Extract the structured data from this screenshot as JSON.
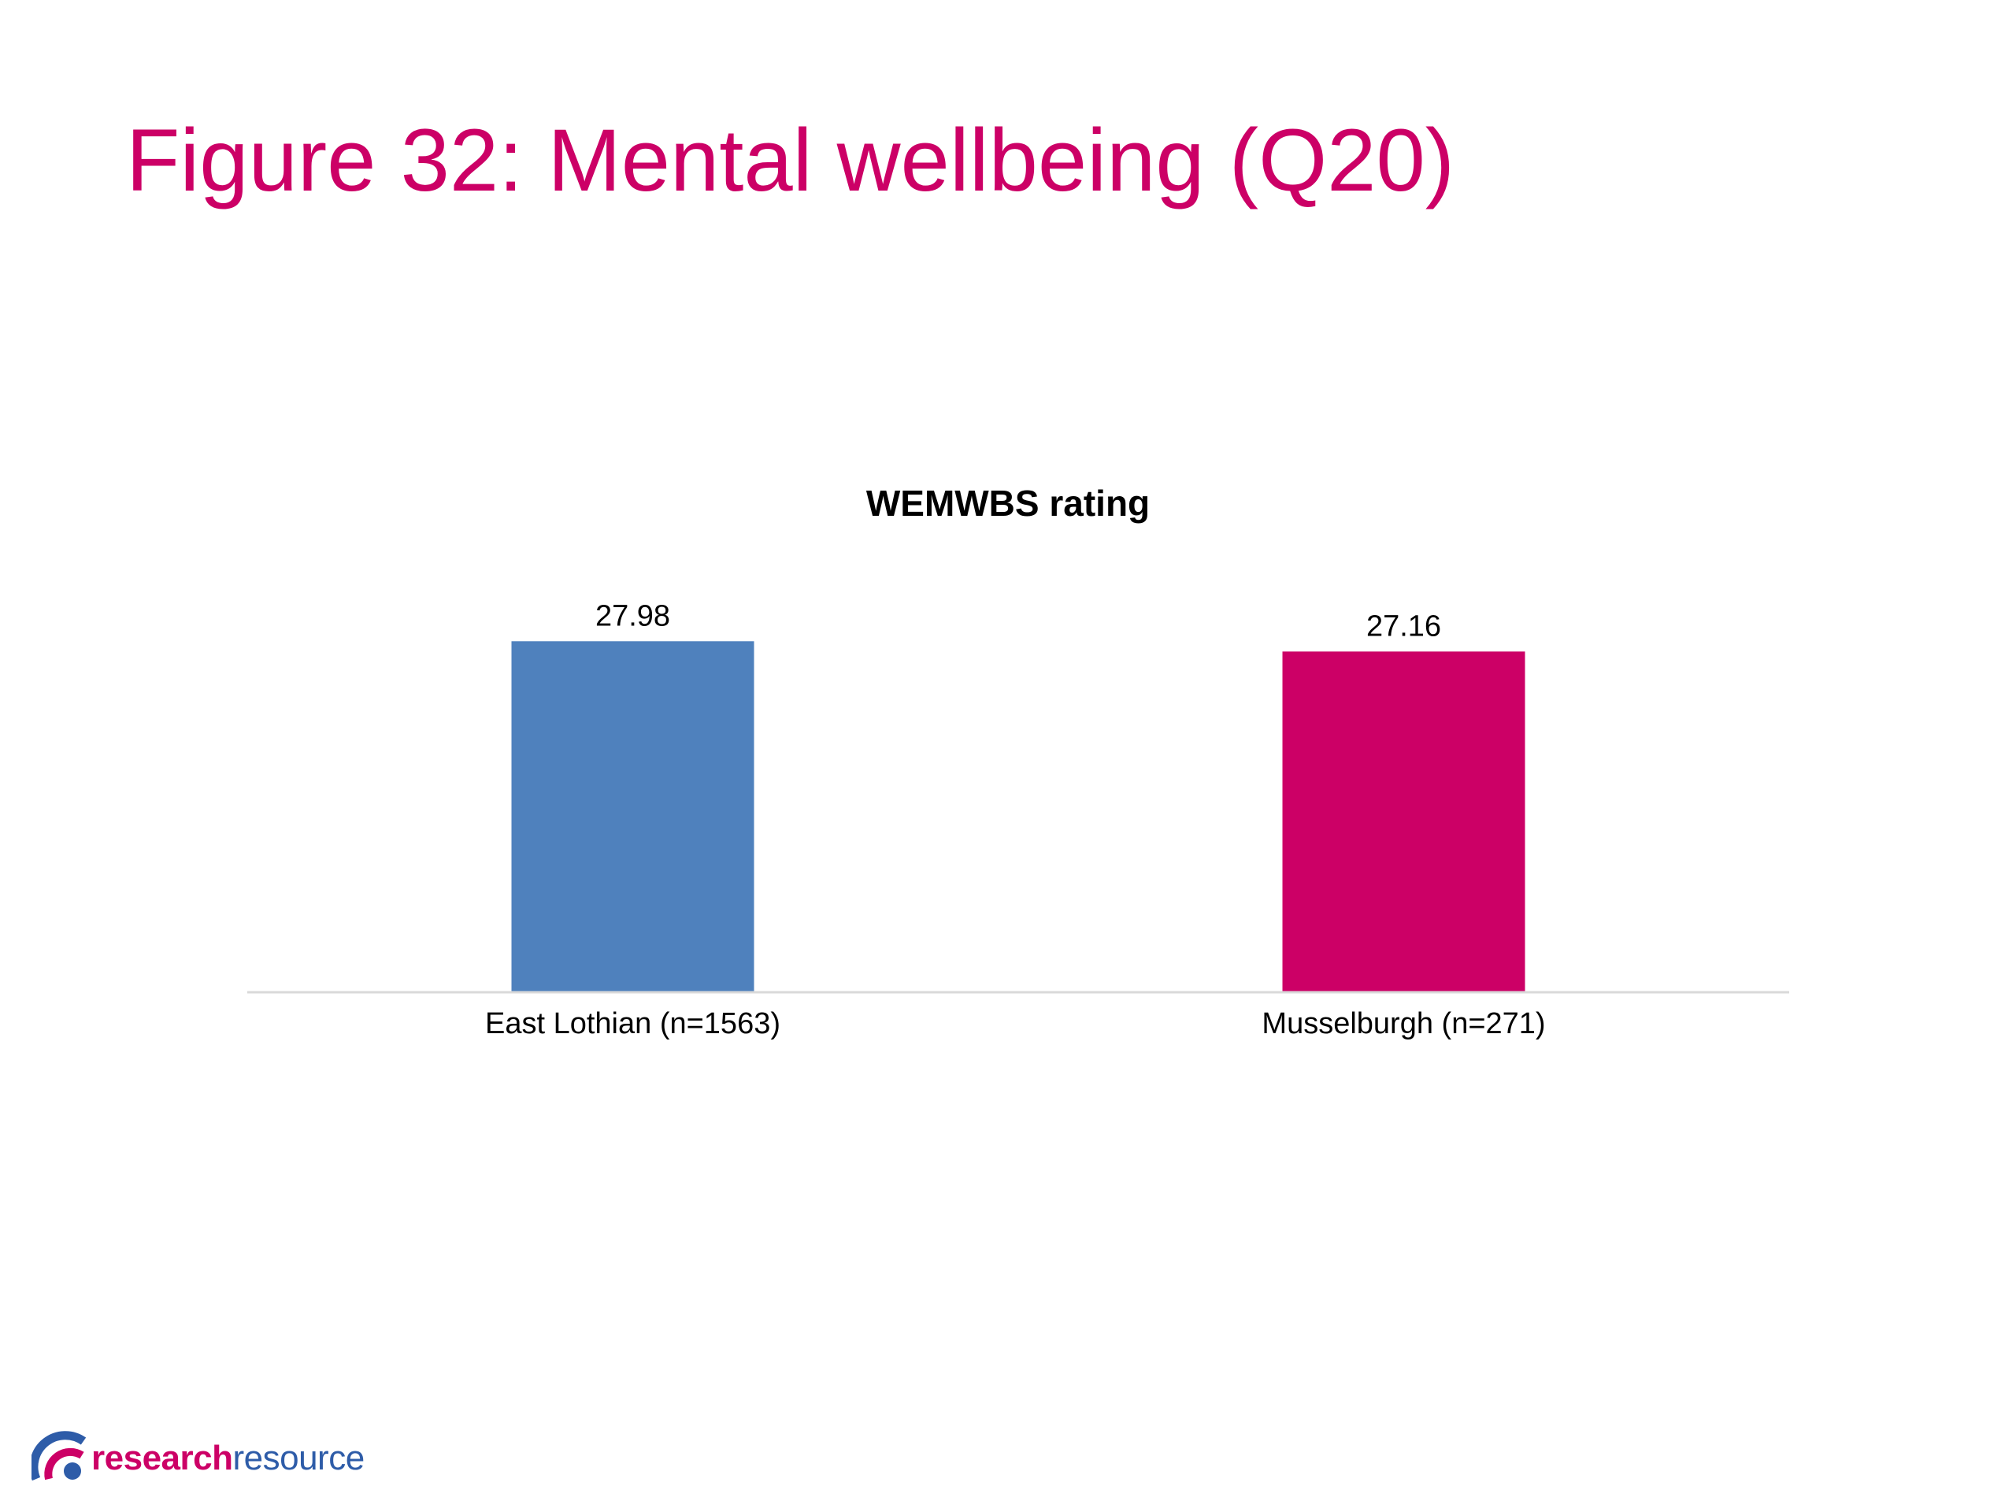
{
  "slide": {
    "title": "Figure 32: Mental wellbeing (Q20)"
  },
  "colors": {
    "title": "#cc0066",
    "axis": "#d9d9d9",
    "logo_pink": "#cc0066",
    "logo_blue": "#2e5ca8"
  },
  "chart_data": {
    "type": "bar",
    "title": "WEMWBS rating",
    "categories": [
      "East Lothian (n=1563)",
      "Musselburgh (n=271)"
    ],
    "values": [
      27.98,
      27.16
    ],
    "data_labels": [
      "27.98",
      "27.16"
    ],
    "bar_colors": [
      "#4f81bd",
      "#cc0066"
    ],
    "xlabel": "",
    "ylabel": "",
    "ylim": [
      0,
      28.5
    ],
    "grid": false,
    "legend": "none",
    "y_axis_visible": false
  },
  "logo": {
    "name": "research resource",
    "icon": "arc-swirl-logo-icon",
    "word_1": "research",
    "word_2": "resource"
  }
}
